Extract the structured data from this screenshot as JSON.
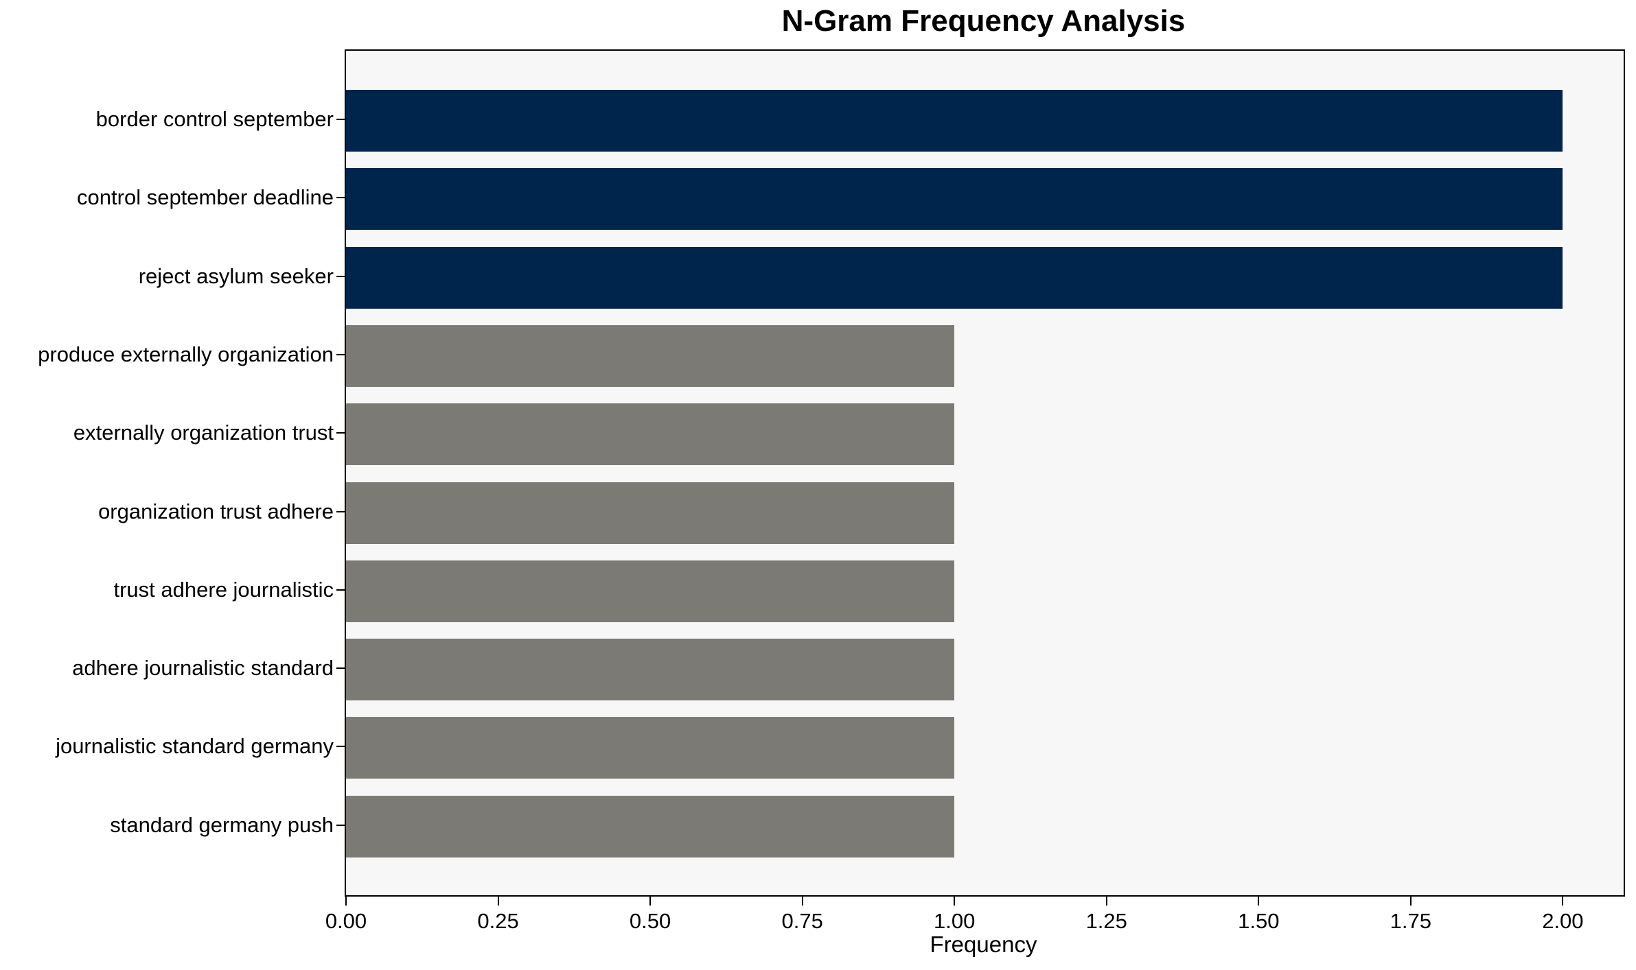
{
  "chart_data": {
    "type": "bar",
    "orientation": "horizontal",
    "title": "N-Gram Frequency Analysis",
    "xlabel": "Frequency",
    "ylabel": "",
    "categories": [
      "border control september",
      "control september deadline",
      "reject asylum seeker",
      "produce externally organization",
      "externally organization trust",
      "organization trust adhere",
      "trust adhere journalistic",
      "adhere journalistic standard",
      "journalistic standard germany",
      "standard germany push"
    ],
    "values": [
      2,
      2,
      2,
      1,
      1,
      1,
      1,
      1,
      1,
      1
    ],
    "bar_colors": [
      "#00254d",
      "#00254d",
      "#00254d",
      "#7b7a75",
      "#7b7a75",
      "#7b7a75",
      "#7b7a75",
      "#7b7a75",
      "#7b7a75",
      "#7b7a75"
    ],
    "xlim": [
      0,
      2.1
    ],
    "xticks": [
      {
        "value": 0.0,
        "label": "0.00"
      },
      {
        "value": 0.25,
        "label": "0.25"
      },
      {
        "value": 0.5,
        "label": "0.50"
      },
      {
        "value": 0.75,
        "label": "0.75"
      },
      {
        "value": 1.0,
        "label": "1.00"
      },
      {
        "value": 1.25,
        "label": "1.25"
      },
      {
        "value": 1.5,
        "label": "1.50"
      },
      {
        "value": 1.75,
        "label": "1.75"
      },
      {
        "value": 2.0,
        "label": "2.00"
      }
    ],
    "grid": false,
    "legend": null,
    "colors": {
      "highlight_bar": "#00254d",
      "base_bar": "#7b7a75",
      "plot_background": "#f7f7f7",
      "figure_background": "#ffffff",
      "spine": "#000000",
      "text": "#000000"
    }
  }
}
